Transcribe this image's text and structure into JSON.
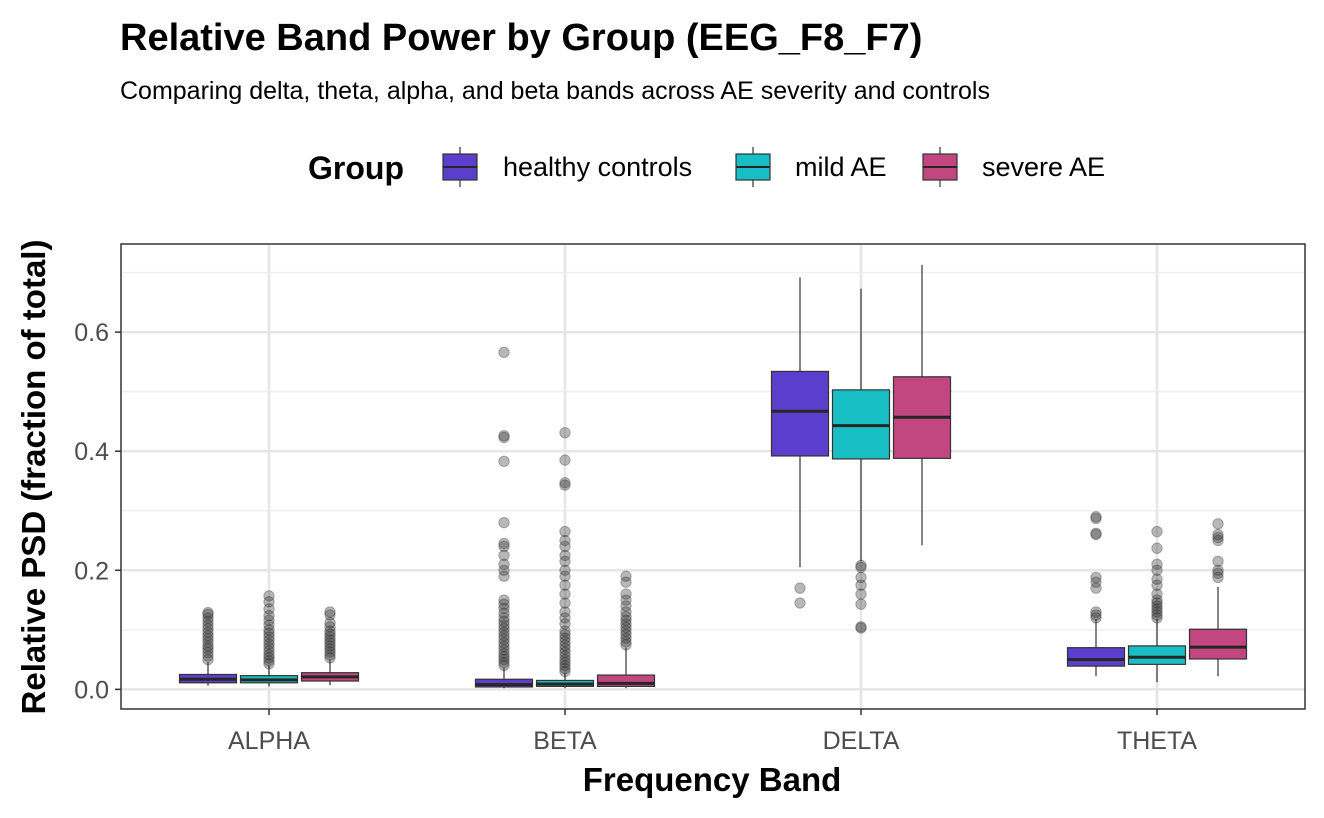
{
  "chart_data": {
    "type": "boxplot",
    "title": "Relative Band Power by Group (EEG_F8_F7)",
    "subtitle": "Comparing delta, theta, alpha, and beta bands across AE severity and controls",
    "xlabel": "Frequency Band",
    "ylabel": "Relative PSD (fraction of total)",
    "categories": [
      "ALPHA",
      "BETA",
      "DELTA",
      "THETA"
    ],
    "ylim": [
      -0.033,
      0.748
    ],
    "yticks": [
      0.0,
      0.2,
      0.4,
      0.6
    ],
    "ytick_labels": [
      "0.0",
      "0.2",
      "0.4",
      "0.6"
    ],
    "grid": true,
    "legend": {
      "title": "Group",
      "position": "top"
    },
    "series": [
      {
        "name": "healthy controls",
        "color": "#5b3fcc",
        "boxes": [
          {
            "category": "ALPHA",
            "min": 0.006,
            "q1": 0.011,
            "median": 0.017,
            "q3": 0.025,
            "max": 0.046,
            "outliers": [
              0.05,
              0.056,
              0.062,
              0.068,
              0.073,
              0.079,
              0.085,
              0.09,
              0.096,
              0.102,
              0.108,
              0.114,
              0.12,
              0.126,
              0.129
            ]
          },
          {
            "category": "BETA",
            "min": 0.002,
            "q1": 0.004,
            "median": 0.008,
            "q3": 0.017,
            "max": 0.036,
            "outliers": [
              0.04,
              0.045,
              0.05,
              0.055,
              0.06,
              0.066,
              0.072,
              0.078,
              0.084,
              0.09,
              0.096,
              0.102,
              0.108,
              0.114,
              0.12,
              0.128,
              0.136,
              0.143,
              0.15,
              0.19,
              0.2,
              0.21,
              0.225,
              0.24,
              0.245,
              0.28,
              0.383,
              0.423,
              0.426,
              0.566
            ]
          },
          {
            "category": "DELTA",
            "min": 0.205,
            "q1": 0.392,
            "median": 0.467,
            "q3": 0.534,
            "max": 0.692,
            "outliers": [
              0.145,
              0.17
            ]
          },
          {
            "category": "THETA",
            "min": 0.022,
            "q1": 0.039,
            "median": 0.05,
            "q3": 0.07,
            "max": 0.118,
            "outliers": [
              0.12,
              0.125,
              0.13,
              0.17,
              0.18,
              0.188,
              0.26,
              0.262,
              0.287,
              0.29
            ]
          }
        ]
      },
      {
        "name": "mild AE",
        "color": "#17bfc4",
        "boxes": [
          {
            "category": "ALPHA",
            "min": 0.005,
            "q1": 0.011,
            "median": 0.016,
            "q3": 0.023,
            "max": 0.04,
            "outliers": [
              0.043,
              0.048,
              0.053,
              0.058,
              0.064,
              0.07,
              0.076,
              0.082,
              0.088,
              0.094,
              0.1,
              0.108,
              0.116,
              0.124,
              0.135,
              0.147,
              0.157
            ]
          },
          {
            "category": "BETA",
            "min": 0.002,
            "q1": 0.005,
            "median": 0.009,
            "q3": 0.015,
            "max": 0.028,
            "outliers": [
              0.03,
              0.035,
              0.04,
              0.045,
              0.05,
              0.056,
              0.062,
              0.068,
              0.074,
              0.08,
              0.086,
              0.092,
              0.098,
              0.11,
              0.12,
              0.13,
              0.145,
              0.16,
              0.175,
              0.19,
              0.2,
              0.215,
              0.225,
              0.24,
              0.25,
              0.265,
              0.343,
              0.347,
              0.385,
              0.431
            ]
          },
          {
            "category": "DELTA",
            "min": 0.215,
            "q1": 0.387,
            "median": 0.443,
            "q3": 0.503,
            "max": 0.673,
            "outliers": [
              0.103,
              0.105,
              0.143,
              0.16,
              0.175,
              0.188,
              0.205,
              0.208
            ]
          },
          {
            "category": "THETA",
            "min": 0.012,
            "q1": 0.042,
            "median": 0.054,
            "q3": 0.073,
            "max": 0.118,
            "outliers": [
              0.12,
              0.125,
              0.13,
              0.135,
              0.14,
              0.145,
              0.15,
              0.16,
              0.175,
              0.185,
              0.2,
              0.21,
              0.237,
              0.265
            ]
          }
        ]
      },
      {
        "name": "severe AE",
        "color": "#c2467f",
        "boxes": [
          {
            "category": "ALPHA",
            "min": 0.007,
            "q1": 0.014,
            "median": 0.021,
            "q3": 0.028,
            "max": 0.05,
            "outliers": [
              0.053,
              0.058,
              0.063,
              0.068,
              0.073,
              0.078,
              0.083,
              0.088,
              0.093,
              0.098,
              0.105,
              0.112,
              0.125,
              0.13
            ]
          },
          {
            "category": "BETA",
            "min": 0.002,
            "q1": 0.005,
            "median": 0.01,
            "q3": 0.024,
            "max": 0.07,
            "outliers": [
              0.075,
              0.08,
              0.086,
              0.092,
              0.098,
              0.104,
              0.11,
              0.116,
              0.122,
              0.13,
              0.14,
              0.15,
              0.16,
              0.18,
              0.19
            ]
          },
          {
            "category": "DELTA",
            "min": 0.242,
            "q1": 0.388,
            "median": 0.457,
            "q3": 0.525,
            "max": 0.713,
            "outliers": []
          },
          {
            "category": "THETA",
            "min": 0.022,
            "q1": 0.051,
            "median": 0.071,
            "q3": 0.101,
            "max": 0.172,
            "outliers": [
              0.188,
              0.195,
              0.2,
              0.215,
              0.25,
              0.255,
              0.26,
              0.278
            ]
          }
        ]
      }
    ]
  }
}
